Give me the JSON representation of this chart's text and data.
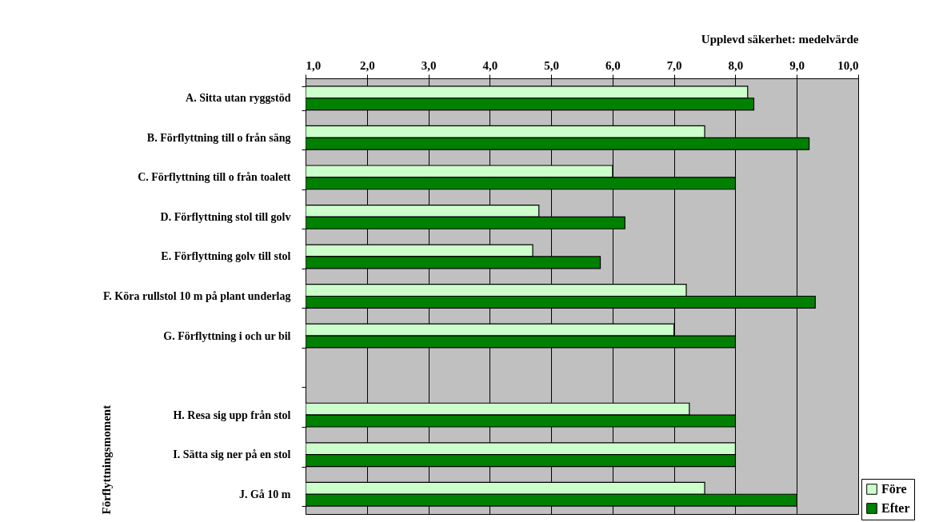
{
  "chart_data": {
    "type": "bar",
    "orientation": "horizontal",
    "xlabel": "Upplevd säkerhet: medelvärde",
    "ylabel": "Förflyttningsmoment",
    "categories": [
      "A. Sitta utan ryggstöd",
      "B. Förflyttning till o från säng",
      "C. Förflyttning till o från toalett",
      "D. Förflyttning stol till golv",
      "E. Förflyttning golv till stol",
      "F. Köra rullstol 10 m på plant underlag",
      "G. Förflyttning i och ur bil",
      null,
      "H. Resa sig upp från stol",
      "I. Sätta sig ner på en stol",
      "J. Gå 10 m"
    ],
    "series": [
      {
        "name": "Före",
        "color": "#ccffcc",
        "values": [
          8.2,
          7.5,
          6.0,
          4.8,
          4.7,
          7.2,
          7.0,
          null,
          7.25,
          8.0,
          7.5
        ]
      },
      {
        "name": "Efter",
        "color": "#008000",
        "values": [
          8.3,
          9.2,
          8.0,
          6.2,
          5.8,
          9.3,
          8.0,
          null,
          8.0,
          8.0,
          9.0
        ]
      }
    ],
    "xlim": [
      1,
      10
    ],
    "xticks": [
      {
        "value": 1,
        "label": "1,0"
      },
      {
        "value": 2,
        "label": "2,0"
      },
      {
        "value": 3,
        "label": "3,0"
      },
      {
        "value": 4,
        "label": "4,0"
      },
      {
        "value": 5,
        "label": "5,0"
      },
      {
        "value": 6,
        "label": "6,0"
      },
      {
        "value": 7,
        "label": "7,0"
      },
      {
        "value": 8,
        "label": "8,0"
      },
      {
        "value": 9,
        "label": "9,0"
      },
      {
        "value": 10,
        "label": "10,0"
      }
    ],
    "grid": "x",
    "legend": "bottom right"
  }
}
